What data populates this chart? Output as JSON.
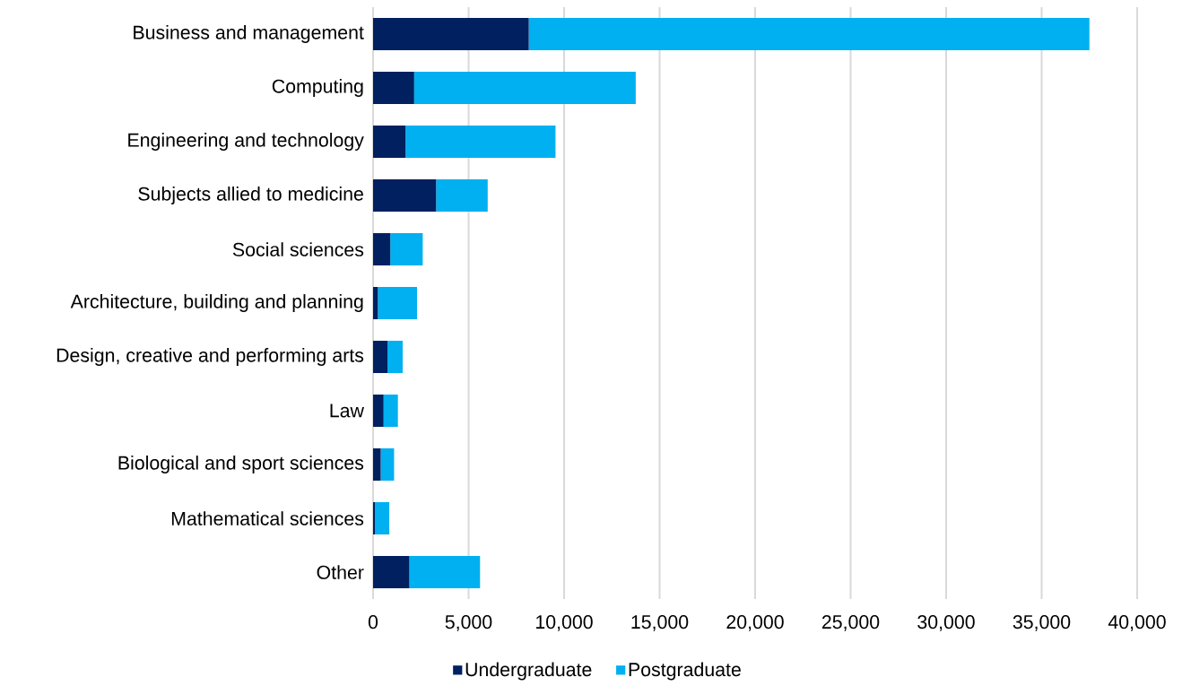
{
  "chart_data": {
    "type": "bar",
    "orientation": "horizontal",
    "stacked": true,
    "categories": [
      "Business and management",
      "Computing",
      "Engineering and technology",
      "Subjects allied to medicine",
      "Social sciences",
      "Architecture, building and planning",
      "Design, creative and performing arts",
      "Law",
      "Biological and sport sciences",
      "Mathematical sciences",
      "Other"
    ],
    "series": [
      {
        "name": "Undergraduate",
        "color": "#002060",
        "values": [
          8150,
          2150,
          1700,
          3300,
          900,
          250,
          750,
          550,
          400,
          100,
          1900
        ]
      },
      {
        "name": "Postgraduate",
        "color": "#00b0f0",
        "values": [
          29350,
          11600,
          7850,
          2700,
          1700,
          2050,
          800,
          750,
          700,
          750,
          3700
        ]
      }
    ],
    "xlim": [
      0,
      40000
    ],
    "xticks": [
      0,
      {
        "value": 5000,
        "label": "5,000"
      },
      {
        "value": 10000,
        "label": "10,000"
      },
      {
        "value": 15000,
        "label": "15,000"
      },
      {
        "value": 20000,
        "label": "20,000"
      },
      {
        "value": 25000,
        "label": "25,000"
      },
      {
        "value": 30000,
        "label": "30,000"
      },
      {
        "value": 35000,
        "label": "35,000"
      },
      {
        "value": 40000,
        "label": "40,000"
      }
    ],
    "grid": "x",
    "legend": "bottom"
  }
}
